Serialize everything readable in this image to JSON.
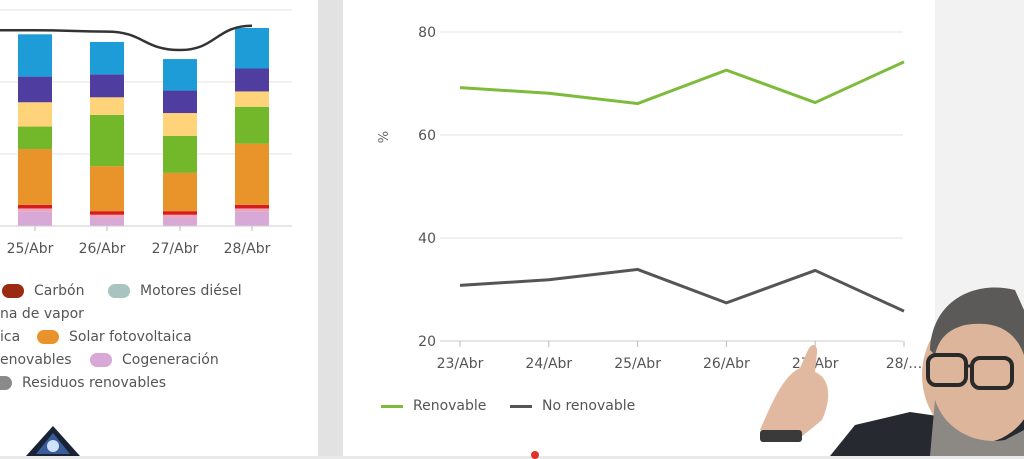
{
  "left_chart": {
    "chart_data": {
      "type": "bar",
      "stacked": true,
      "categories": [
        "25/Abr",
        "26/Abr",
        "27/Abr",
        "28/Abr"
      ],
      "series": [
        {
          "name": "Cogeneración",
          "color": "#d8a8d6",
          "values": [
            3.3,
            1.9,
            1.9,
            3.3
          ]
        },
        {
          "name": "Carbón",
          "color": "#f3a3b5",
          "values": [
            0.6,
            0.6,
            0.6,
            0.6
          ]
        },
        {
          "name": "",
          "color": "#d61c1c",
          "values": [
            0.8,
            0.8,
            0.8,
            0.8
          ]
        },
        {
          "name": "Solar fotovoltaica",
          "color": "#e8942a",
          "values": [
            12.4,
            10.0,
            8.5,
            13.6
          ]
        },
        {
          "name": "",
          "color": "#73b72b",
          "values": [
            5.0,
            11.4,
            8.2,
            8.2
          ]
        },
        {
          "name": "",
          "color": "#ffd37a",
          "values": [
            5.4,
            3.9,
            5.1,
            3.4
          ]
        },
        {
          "name": "",
          "color": "#4f3ea0",
          "values": [
            5.7,
            5.1,
            5.0,
            5.1
          ]
        },
        {
          "name": "",
          "color": "#1e9cd7",
          "values": [
            9.4,
            7.2,
            7.0,
            9.0
          ]
        }
      ],
      "line": {
        "name": "",
        "color": "#333333",
        "values": [
          43.5,
          43.2,
          39.1,
          44.5
        ]
      },
      "ylim": [
        0,
        48
      ],
      "grid": true
    },
    "legend": [
      {
        "label": "Carbón",
        "color": "#9b2a12"
      },
      {
        "label": "Motores diésel",
        "color": "#a9c4c0"
      },
      {
        "label": "na de vapor",
        "color": ""
      },
      {
        "label": "ica",
        "color": ""
      },
      {
        "label": "Solar fotovoltaica",
        "color": "#e8942a"
      },
      {
        "label": "enovables",
        "color": ""
      },
      {
        "label": "Cogeneración",
        "color": "#d8a8d6"
      },
      {
        "label": "Residuos renovables",
        "color": "#8a8a8a"
      }
    ]
  },
  "right_chart": {
    "chart_data": {
      "type": "line",
      "categories": [
        "23/Abr",
        "24/Abr",
        "25/Abr",
        "26/Abr",
        "27/Abr",
        "28/…"
      ],
      "series": [
        {
          "name": "Renovable",
          "color": "#7dbb3b",
          "values": [
            69.2,
            68.1,
            66.1,
            72.6,
            66.3,
            74.2
          ]
        },
        {
          "name": "No renovable",
          "color": "#555555",
          "values": [
            30.8,
            31.9,
            33.9,
            27.4,
            33.7,
            25.8
          ]
        }
      ],
      "ylabel": "%",
      "yticks": [
        20,
        40,
        60,
        80
      ],
      "ylim": [
        20,
        84
      ],
      "grid": true
    }
  }
}
